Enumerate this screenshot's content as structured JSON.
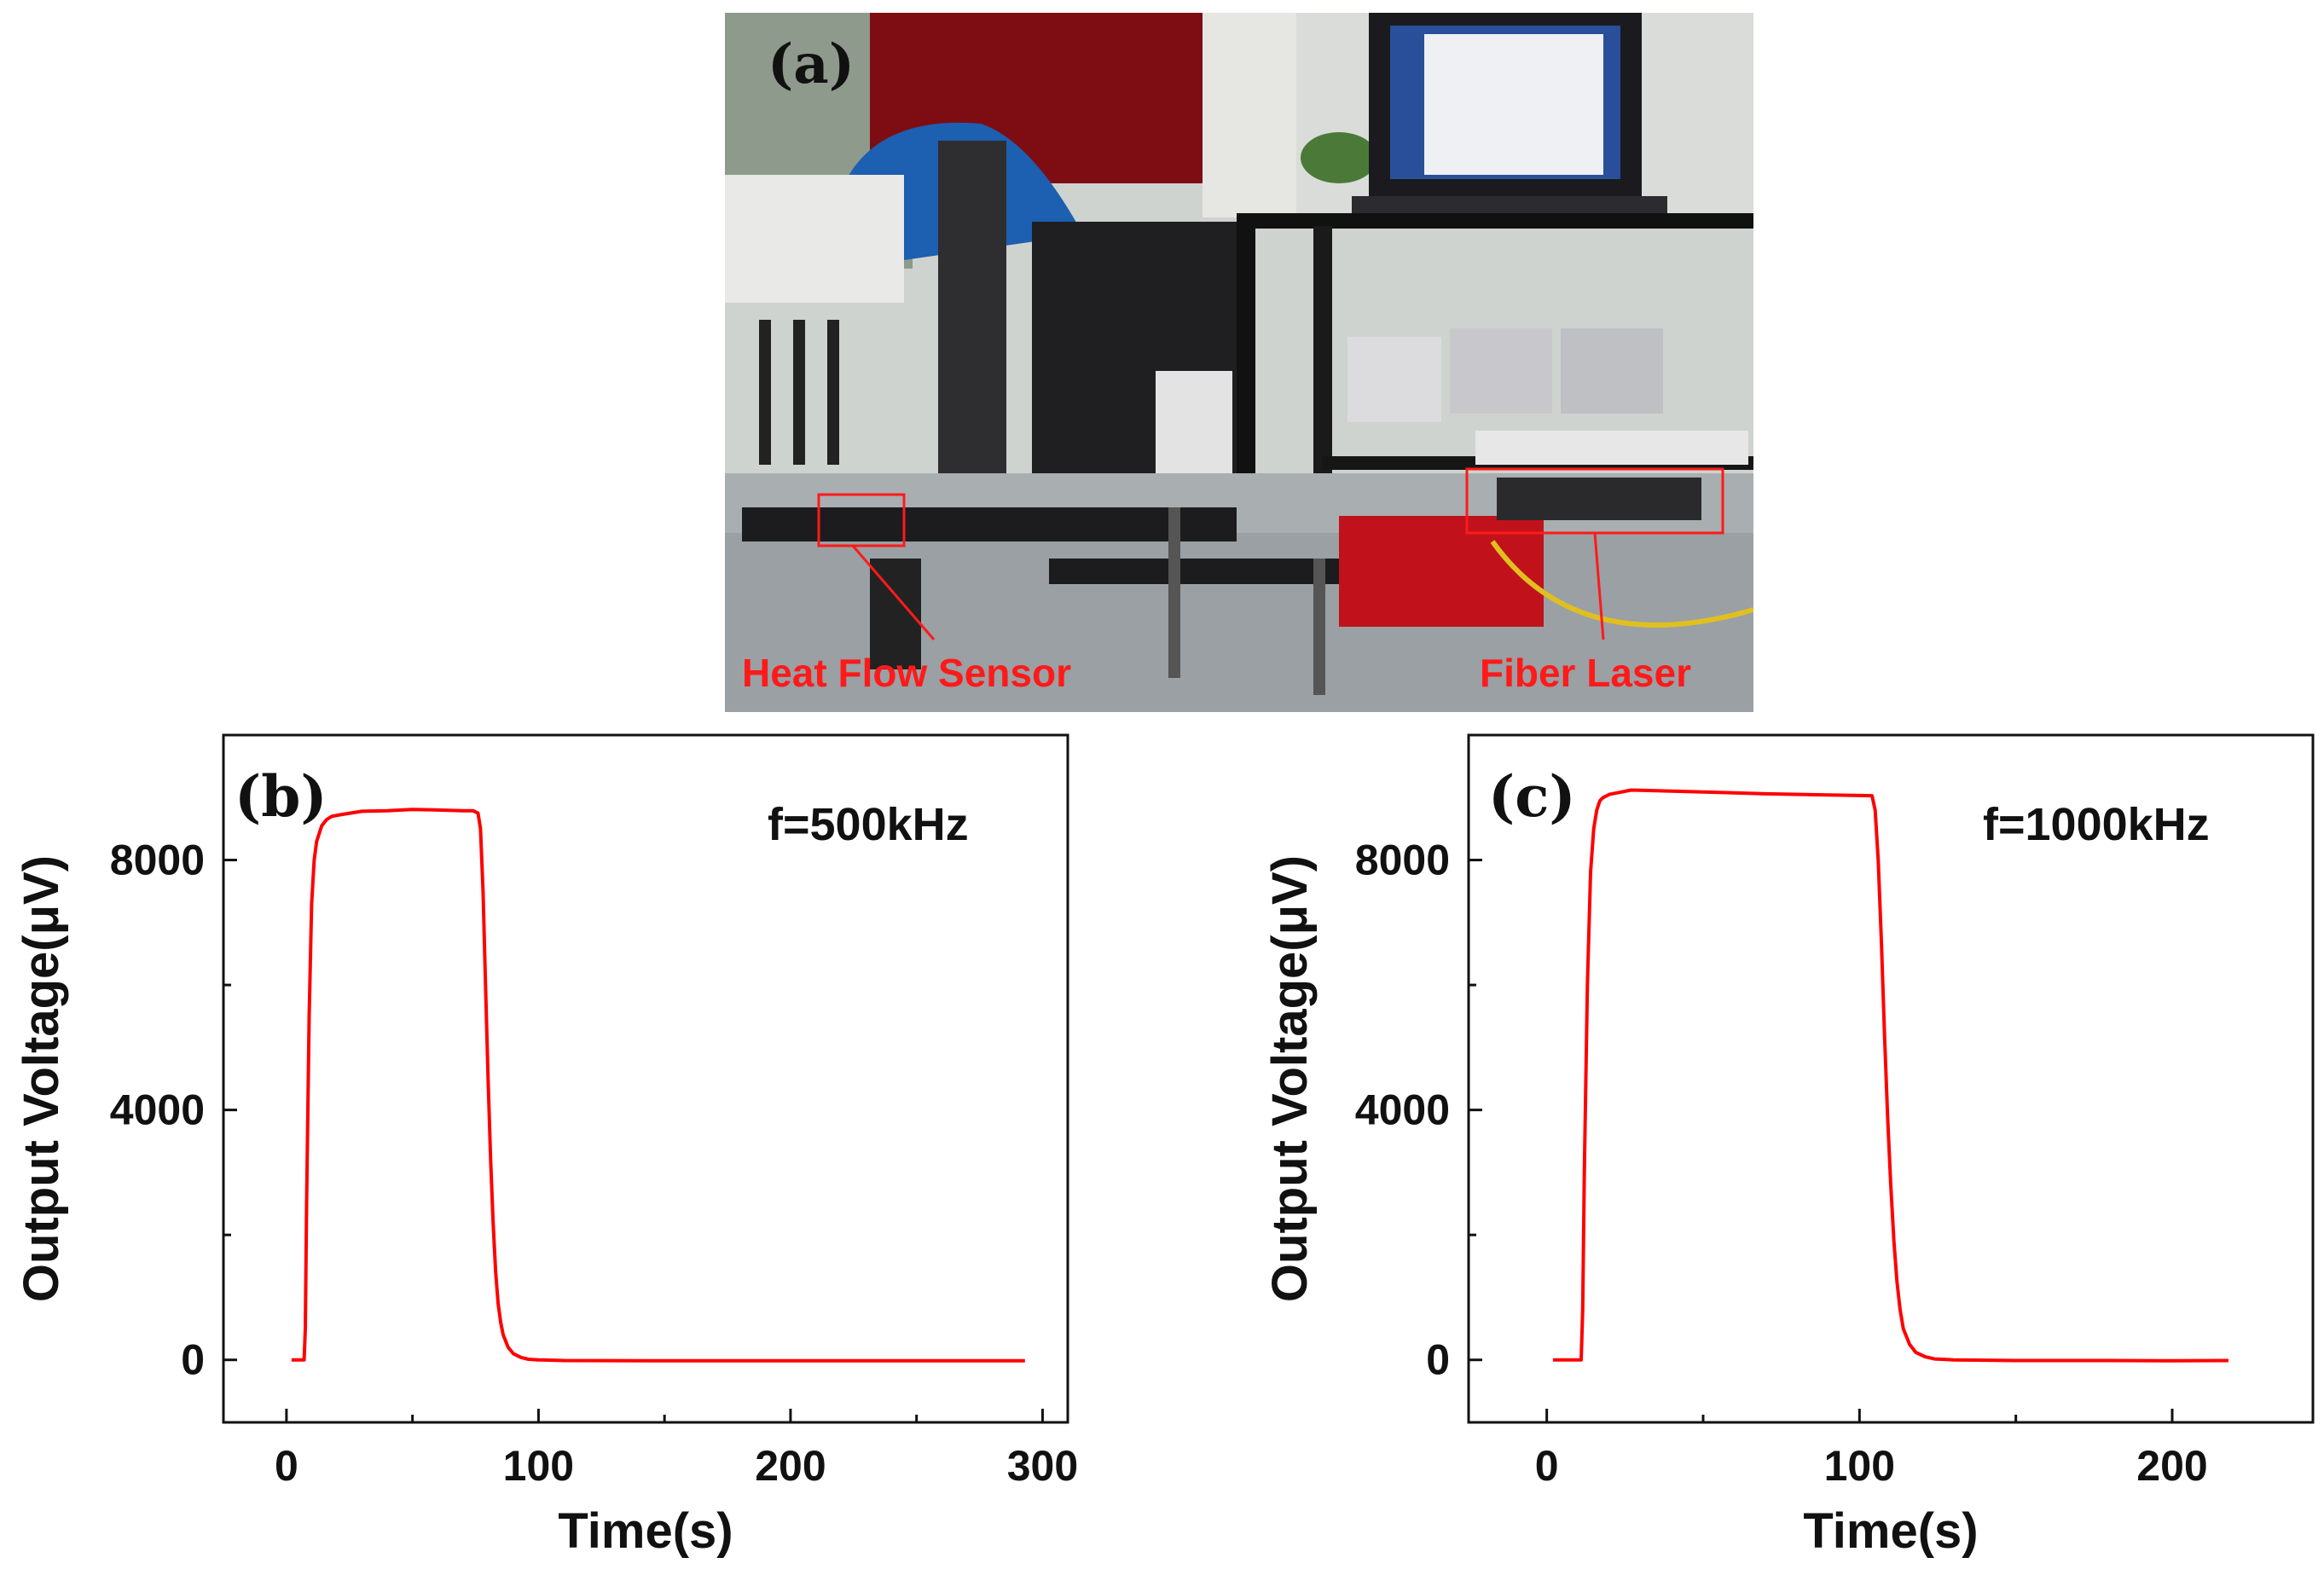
{
  "photo": {
    "panel_label": "(a)",
    "annotations": [
      {
        "text": "Heat Flow Sensor"
      },
      {
        "text": "Fiber Laser"
      }
    ],
    "accent_color": "#ff1a1a"
  },
  "chart_data": [
    {
      "type": "line",
      "panel_label": "(b)",
      "annotation": "f=500kHz",
      "xlabel": "Time(s)",
      "ylabel": "Output Voltage(μV)",
      "xlim": [
        -25,
        310
      ],
      "ylim": [
        -1000,
        10000
      ],
      "xticks": [
        0,
        100,
        200,
        300
      ],
      "yticks": [
        0,
        4000,
        8000
      ],
      "grid": false,
      "line_color": "#ff0000",
      "x": [
        2,
        7,
        7.5,
        8,
        9,
        10,
        11,
        12,
        14,
        16,
        18,
        22,
        30,
        40,
        50,
        60,
        70,
        74,
        76,
        77,
        78,
        79,
        80,
        81,
        82,
        83,
        84,
        85,
        86,
        88,
        90,
        93,
        96,
        100,
        110,
        150,
        200,
        250,
        293
      ],
      "y": [
        0,
        0,
        500,
        2500,
        5500,
        7300,
        8000,
        8300,
        8550,
        8650,
        8700,
        8730,
        8780,
        8790,
        8810,
        8800,
        8790,
        8790,
        8750,
        8500,
        7500,
        6000,
        4500,
        3200,
        2200,
        1400,
        900,
        600,
        400,
        200,
        100,
        40,
        10,
        0,
        -10,
        -15,
        -15,
        -15,
        -15
      ]
    },
    {
      "type": "line",
      "panel_label": "(c)",
      "annotation": "f=1000kHz",
      "xlabel": "Time(s)",
      "ylabel": "Output Voltage(μV)",
      "xlim": [
        -25,
        245
      ],
      "ylim": [
        -1000,
        10000
      ],
      "xticks": [
        0,
        100,
        200
      ],
      "yticks": [
        0,
        4000,
        8000
      ],
      "grid": false,
      "line_color": "#ff0000",
      "x": [
        2,
        11,
        11.5,
        12,
        13,
        14,
        15,
        16,
        17,
        18,
        20,
        23,
        27,
        35,
        50,
        70,
        90,
        104,
        105,
        106,
        107,
        108,
        109,
        110,
        111,
        112,
        113,
        114,
        116,
        118,
        121,
        124,
        130,
        150,
        180,
        200,
        218
      ],
      "y": [
        0,
        0,
        800,
        3000,
        6000,
        7800,
        8500,
        8800,
        8950,
        9000,
        9050,
        9080,
        9120,
        9110,
        9090,
        9060,
        9040,
        9030,
        8800,
        8000,
        6700,
        5200,
        3900,
        2800,
        1900,
        1250,
        800,
        500,
        250,
        120,
        50,
        15,
        0,
        -10,
        -10,
        -15,
        -10
      ]
    }
  ]
}
